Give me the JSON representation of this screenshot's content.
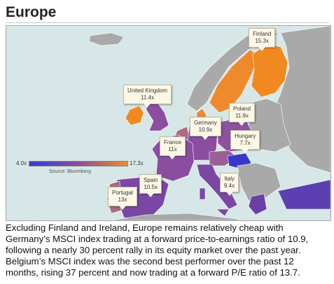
{
  "title": "Europe",
  "colors": {
    "sea": "#d7e7e7",
    "non_covered_land": "#a9a9a9",
    "low": "#2f3fd0",
    "mid": "#8a4da0",
    "high": "#f08a20"
  },
  "legend": {
    "min": "4.0x",
    "max": "17.3x",
    "source": "Source: Bloomberg"
  },
  "callouts": [
    {
      "country": "Finland",
      "value": "15.3x"
    },
    {
      "country": "United Kingdom",
      "value": "11.4x"
    },
    {
      "country": "Poland",
      "value": "11.9x"
    },
    {
      "country": "Germany",
      "value": "10.9x"
    },
    {
      "country": "Hungary",
      "value": "7.7x"
    },
    {
      "country": "France",
      "value": "11x"
    },
    {
      "country": "Spain",
      "value": "10.5x"
    },
    {
      "country": "Portugal",
      "value": "13x"
    },
    {
      "country": "Italy",
      "value": "9.4x"
    }
  ],
  "caption": "Excluding Finland and Ireland, Europe remains relatively cheap with Germany’s MSCI index trading at a forward price-to-earnings ratio of 10.9, following a nearly 30 percent rally in its equity market over the past year. Belgium’s MSCI index was the second best performer over the past 12 months, rising 37 percent and now trading at a forward P/E ratio of 13.7."
}
